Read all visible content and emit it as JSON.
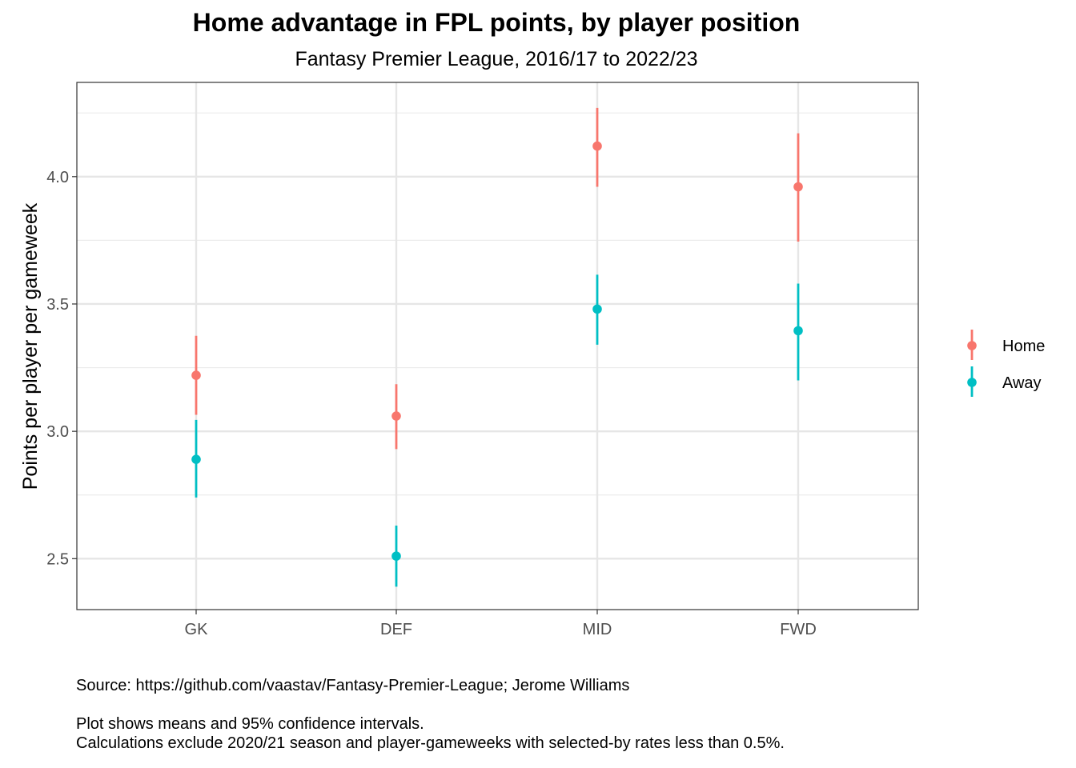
{
  "chart_data": {
    "type": "scatter",
    "title": "Home advantage in FPL points, by player position",
    "subtitle": "Fantasy Premier League, 2016/17 to 2022/23",
    "xlabel": "",
    "ylabel": "Points per player per gameweek",
    "categories": [
      "GK",
      "DEF",
      "MID",
      "FWD"
    ],
    "ylim": [
      2.3,
      4.37
    ],
    "yticks": [
      2.5,
      3.0,
      3.5,
      4.0
    ],
    "ytick_labels": [
      "2.5",
      "3.0",
      "3.5",
      "4.0"
    ],
    "grid": true,
    "legend_position": "right",
    "series": [
      {
        "name": "Home",
        "color": "#F8766D",
        "values": [
          3.22,
          3.06,
          4.12,
          3.96
        ],
        "ci_low": [
          3.065,
          2.93,
          3.96,
          3.745
        ],
        "ci_high": [
          3.375,
          3.185,
          4.27,
          4.17
        ]
      },
      {
        "name": "Away",
        "color": "#00BFC4",
        "values": [
          2.89,
          2.51,
          3.48,
          3.395
        ],
        "ci_low": [
          2.74,
          2.39,
          3.34,
          3.2
        ],
        "ci_high": [
          3.045,
          2.63,
          3.615,
          3.58
        ]
      }
    ]
  },
  "caption": {
    "source": "Source: https://github.com/vaastav/Fantasy-Premier-League; Jerome Williams",
    "note1": "Plot shows means and 95% confidence intervals.",
    "note2": "Calculations exclude 2020/21 season and player-gameweeks with selected-by rates less than 0.5%."
  }
}
